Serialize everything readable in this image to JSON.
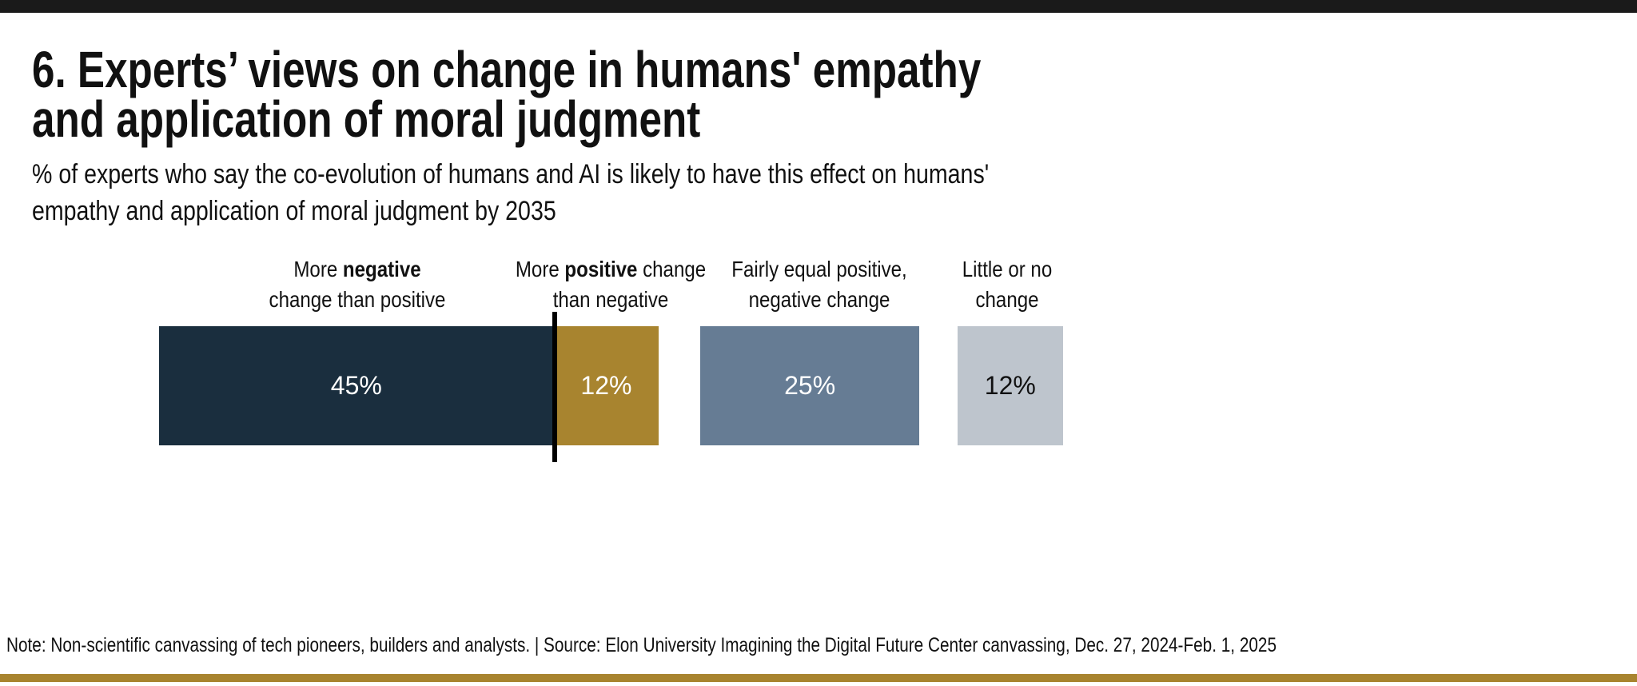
{
  "chart_data": {
    "type": "bar",
    "orientation": "horizontal-stacked-segments",
    "title": [
      "6. Experts’ views on change in humans' empathy",
      "and application of moral judgment"
    ],
    "subtitle": [
      "% of experts who say the co-evolution of humans and AI is likely to have this effect on humans'",
      "empathy and application of moral judgment by 2035"
    ],
    "categories": [
      {
        "pre": "More ",
        "bold": "negative",
        "post": "",
        "line2": "change than positive"
      },
      {
        "pre": "More ",
        "bold": "positive",
        "post": " change",
        "line2": "than negative"
      },
      {
        "pre": "Fairly equal positive,",
        "bold": "",
        "post": "",
        "line2": "negative change"
      },
      {
        "pre": "Little or no",
        "bold": "",
        "post": "",
        "line2": "change"
      }
    ],
    "values": [
      45,
      12,
      25,
      12
    ],
    "data_labels": [
      "45%",
      "12%",
      "25%",
      "12%"
    ],
    "colors": [
      "#1a2e3e",
      "#a8842f",
      "#667c94",
      "#bec5cd"
    ],
    "label_colors": [
      "#ffffff",
      "#ffffff",
      "#ffffff",
      "#111111"
    ],
    "grid": false,
    "legend": "none"
  },
  "note": "Note: Non-scientific canvassing of tech pioneers, builders and analysts. | Source: Elon University Imagining the Digital Future Center canvassing,  Dec. 27, 2024-Feb. 1, 2025"
}
